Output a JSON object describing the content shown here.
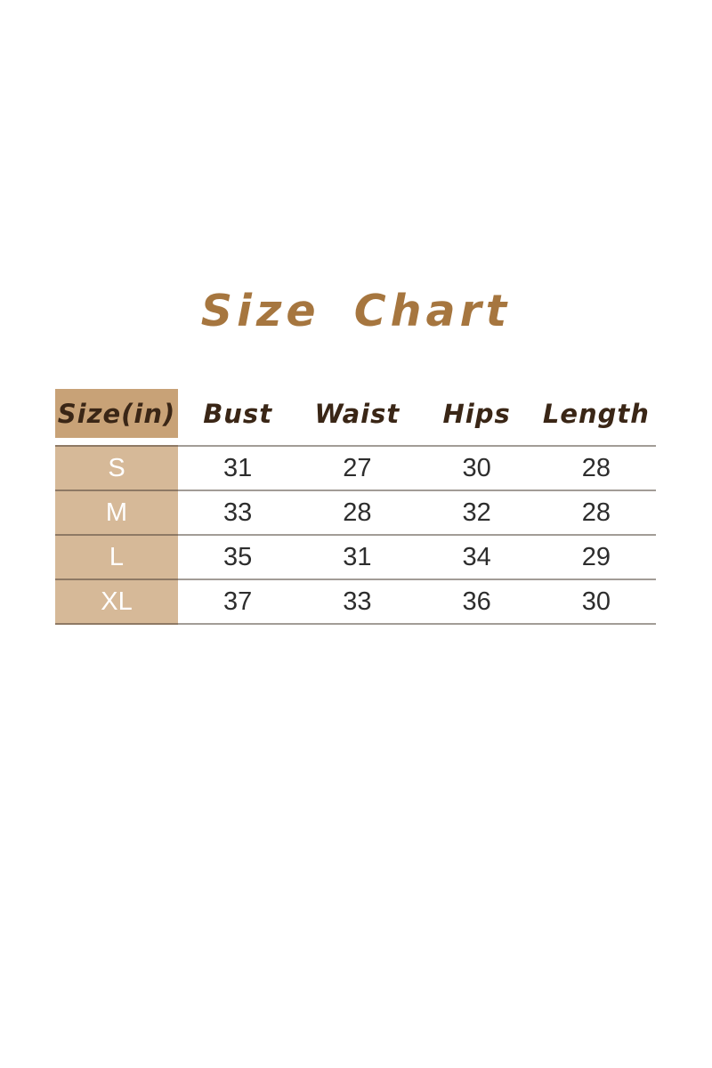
{
  "title": {
    "text": "Size Chart"
  },
  "table": {
    "columns": [
      "Size(in)",
      "Bust",
      "Waist",
      "Hips",
      "Length"
    ],
    "rows": [
      {
        "size": "S",
        "values": [
          "31",
          "27",
          "30",
          "28"
        ]
      },
      {
        "size": "M",
        "values": [
          "33",
          "28",
          "32",
          "28"
        ]
      },
      {
        "size": "L",
        "values": [
          "35",
          "31",
          "34",
          "29"
        ]
      },
      {
        "size": "XL",
        "values": [
          "37",
          "33",
          "36",
          "30"
        ]
      }
    ]
  },
  "colors": {
    "title_text": "#A6763F",
    "header_cell_bg": "#C8A277",
    "header_text": "#3A2616",
    "size_column_bg": "#D6B998",
    "size_column_text": "#FFFFFF",
    "value_text": "#2D2D2D",
    "row_divider": "rgba(70,58,48,0.5)",
    "page_bg": "#FFFFFF"
  },
  "chart_data": {
    "type": "table",
    "title": "Size Chart",
    "columns": [
      "Size(in)",
      "Bust",
      "Waist",
      "Hips",
      "Length"
    ],
    "rows": [
      [
        "S",
        31,
        27,
        30,
        28
      ],
      [
        "M",
        33,
        28,
        32,
        28
      ],
      [
        "L",
        35,
        31,
        34,
        29
      ],
      [
        "XL",
        37,
        33,
        36,
        30
      ]
    ]
  }
}
